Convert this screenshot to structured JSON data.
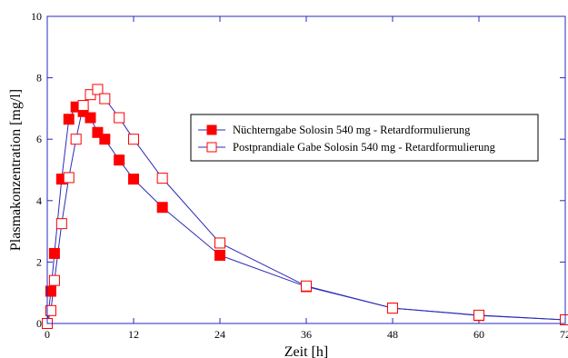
{
  "chart_data": {
    "type": "line",
    "title": "",
    "xlabel": "Zeit [h]",
    "ylabel": "Plasmakonzentration [mg/l]",
    "xlim": [
      0,
      72
    ],
    "ylim": [
      0,
      10
    ],
    "xticks": [
      0,
      12,
      24,
      36,
      48,
      60,
      72
    ],
    "yticks": [
      0,
      2,
      4,
      6,
      8,
      10
    ],
    "grid": false,
    "legend_position": "right-center",
    "line_color": "#2a2ab8",
    "marker_color": "#ff0000",
    "series": [
      {
        "name": "Nüchterngabe Solosin 540 mg - Retardformulierung",
        "marker": "filled-square",
        "x": [
          0,
          0.5,
          1,
          2,
          3,
          4,
          5,
          6,
          7,
          8,
          10,
          12,
          16,
          24,
          36,
          48,
          60,
          72
        ],
        "y": [
          0,
          1.05,
          2.28,
          4.7,
          6.65,
          7.05,
          6.9,
          6.7,
          6.22,
          6.0,
          5.32,
          4.7,
          3.78,
          2.22,
          1.2,
          0.5,
          0.26,
          0.12
        ]
      },
      {
        "name": "Postprandiale Gabe Solosin 540 mg - Retardformulierung",
        "marker": "open-square",
        "x": [
          0,
          0.5,
          1,
          2,
          3,
          4,
          5,
          6,
          7,
          8,
          10,
          12,
          16,
          24,
          36,
          48,
          60,
          72
        ],
        "y": [
          0,
          0.42,
          1.4,
          3.25,
          4.75,
          6.0,
          7.1,
          7.45,
          7.62,
          7.32,
          6.7,
          6.0,
          4.73,
          2.62,
          1.22,
          0.5,
          0.27,
          0.12
        ]
      }
    ]
  }
}
